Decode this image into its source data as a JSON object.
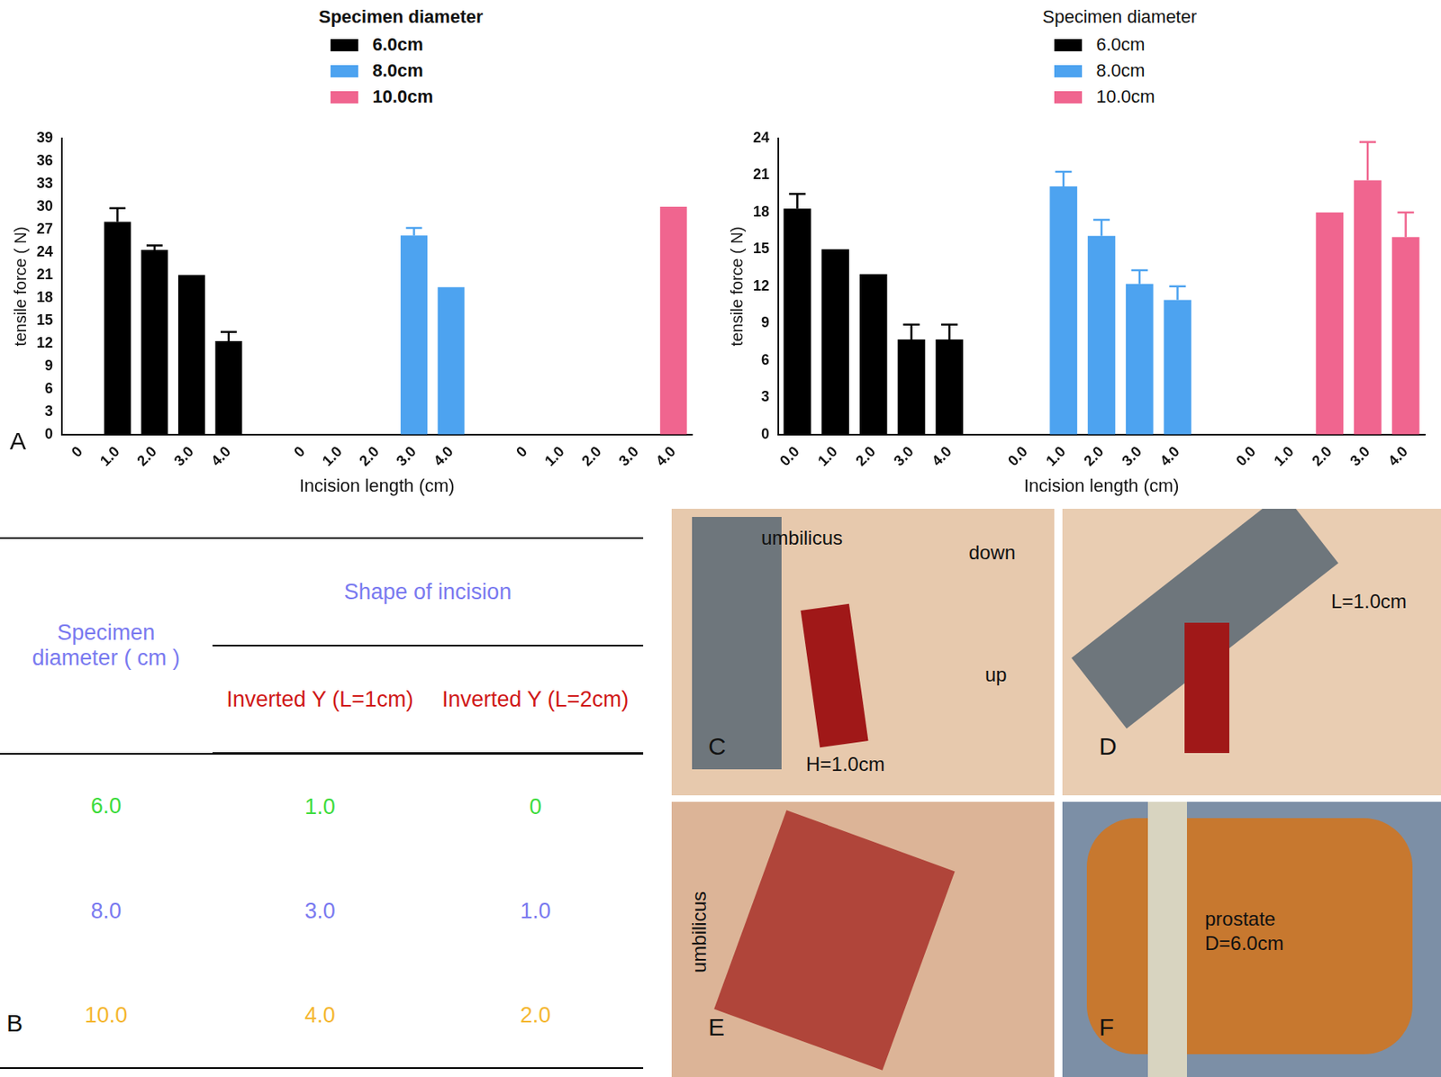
{
  "chart_data": [
    {
      "type": "bar",
      "x_label": "Incision length (cm)",
      "y_label": "tensile force ( N)",
      "legend_title": "Specimen diameter",
      "legend": "top right",
      "grid": false,
      "categories": [
        "0",
        "1.0",
        "2.0",
        "3.0",
        "4.0",
        null,
        "0",
        "1.0",
        "2.0",
        "3.0",
        "4.0",
        null,
        "0",
        "1.0",
        "2.0",
        "3.0",
        "4.0"
      ],
      "series": [
        {
          "name": "6.0cm",
          "color": "#000000",
          "values": [
            0,
            28,
            24.3,
            21,
            12.3,
            null,
            null,
            null,
            null,
            null,
            null,
            null,
            null,
            null,
            null,
            null,
            null
          ],
          "errors": [
            null,
            1.8,
            0.6,
            null,
            1.2,
            null,
            null,
            null,
            null,
            null,
            null,
            null,
            null,
            null,
            null,
            null,
            null
          ]
        },
        {
          "name": "8.0cm",
          "color": "#4da3f0",
          "values": [
            null,
            null,
            null,
            null,
            null,
            null,
            0,
            0,
            0,
            26.2,
            19.4,
            null,
            null,
            null,
            null,
            null,
            null
          ],
          "errors": [
            null,
            null,
            null,
            null,
            null,
            null,
            null,
            null,
            null,
            1.0,
            null,
            null,
            null,
            null,
            null,
            null,
            null
          ]
        },
        {
          "name": "10.0cm",
          "color": "#f0658f",
          "values": [
            null,
            null,
            null,
            null,
            null,
            null,
            null,
            null,
            null,
            null,
            null,
            null,
            0,
            0,
            0,
            0,
            30
          ],
          "errors": [
            null,
            null,
            null,
            null,
            null,
            null,
            null,
            null,
            null,
            null,
            null,
            null,
            null,
            null,
            null,
            null,
            null
          ]
        }
      ],
      "ylim": [
        0,
        39
      ],
      "yticks": [
        0,
        3,
        6,
        9,
        12,
        15,
        18,
        21,
        24,
        27,
        30,
        33,
        36,
        39
      ]
    },
    {
      "type": "bar",
      "x_label": "Incision length (cm)",
      "y_label": "tensile force ( N)",
      "legend_title": "Specimen diameter",
      "legend": "top right",
      "grid": false,
      "categories": [
        "0.0",
        "1.0",
        "2.0",
        "3.0",
        "4.0",
        null,
        "0.0",
        "1.0",
        "2.0",
        "3.0",
        "4.0",
        null,
        "0.0",
        "1.0",
        "2.0",
        "3.0",
        "4.0"
      ],
      "series": [
        {
          "name": "6.0cm",
          "color": "#000000",
          "values": [
            18.3,
            15,
            13,
            7.7,
            7.7,
            null,
            null,
            null,
            null,
            null,
            null,
            null,
            null,
            null,
            null,
            null,
            null
          ],
          "errors": [
            1.2,
            null,
            null,
            1.2,
            1.2,
            null,
            null,
            null,
            null,
            null,
            null,
            null,
            null,
            null,
            null,
            null,
            null
          ]
        },
        {
          "name": "8.0cm",
          "color": "#4da3f0",
          "values": [
            null,
            null,
            null,
            null,
            null,
            null,
            0,
            20.1,
            16.1,
            12.2,
            10.9,
            null,
            null,
            null,
            null,
            null,
            null
          ],
          "errors": [
            null,
            null,
            null,
            null,
            null,
            null,
            null,
            1.2,
            1.3,
            1.1,
            1.1,
            null,
            null,
            null,
            null,
            null,
            null
          ]
        },
        {
          "name": "10.0cm",
          "color": "#f0658f",
          "values": [
            null,
            null,
            null,
            null,
            null,
            null,
            null,
            null,
            null,
            null,
            null,
            null,
            0,
            0,
            18,
            20.6,
            16
          ],
          "errors": [
            null,
            null,
            null,
            null,
            null,
            null,
            null,
            null,
            null,
            null,
            null,
            null,
            null,
            null,
            null,
            3.1,
            2.0
          ]
        }
      ],
      "ylim": [
        0,
        24
      ],
      "yticks": [
        0,
        3,
        6,
        9,
        12,
        15,
        18,
        21,
        24
      ]
    }
  ],
  "panel_labels": [
    "A",
    "B",
    "C",
    "D",
    "E",
    "F"
  ],
  "table": {
    "header": {
      "row_header": "Specimen diameter ( cm )",
      "group": "Shape of incision",
      "columns": [
        "Inverted Y (L=1cm)",
        "Inverted Y (L=2cm)"
      ]
    },
    "rows": [
      [
        "6.0",
        "1.0",
        "0"
      ],
      [
        "8.0",
        "3.0",
        "1.0"
      ],
      [
        "10.0",
        "4.0",
        "2.0"
      ]
    ]
  },
  "photos": {
    "C": {
      "texts": [
        "umbilicus",
        "down",
        "up",
        "H=1.0cm"
      ]
    },
    "D": {
      "texts": [
        "L=1.0cm"
      ]
    },
    "E": {
      "texts": [
        "umbilicus"
      ]
    },
    "F": {
      "texts": [
        "prostate",
        "D=6.0cm"
      ]
    }
  }
}
